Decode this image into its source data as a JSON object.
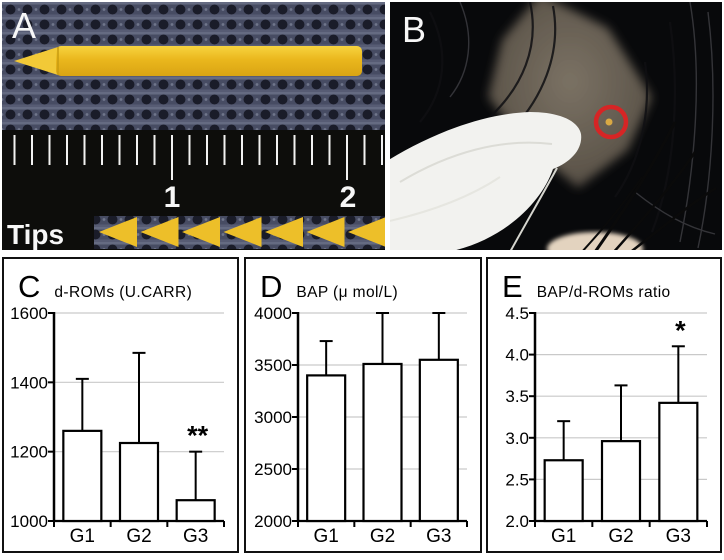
{
  "colors": {
    "crayon_yellow": "#eab71d",
    "crayon_tip_yellow": "#f2c937",
    "tip_triangle_yellow": "#edbf29",
    "circle_red": "#d62525",
    "marker_dot_yellow": "#d9a944",
    "mesh_base": "#474c63",
    "mesh_hole": "#1a1c29",
    "ruler_black": "#0d0d0b",
    "bar_fill": "#ffffff",
    "bar_border": "#000000",
    "grid_gray": "#c9c9c9",
    "photo_label_white": "#f7f7f7"
  },
  "panels": {
    "a": {
      "label": "A",
      "tips_label": "Tips",
      "ruler_numbers": [
        "1",
        "2"
      ],
      "tip_count": 7
    },
    "b": {
      "label": "B"
    }
  },
  "chart_data": [
    {
      "id": "c",
      "panel_label": "C",
      "type": "bar",
      "title": "d-ROMs (U.CARR)",
      "categories": [
        "G1",
        "G2",
        "G3"
      ],
      "values": [
        1260,
        1225,
        1060
      ],
      "error_top": [
        1410,
        1485,
        1200
      ],
      "significance": [
        "",
        "",
        "**"
      ],
      "ylim": [
        1000,
        1600
      ],
      "ytick_values": [
        1600,
        1400,
        1200,
        1000
      ],
      "ytick_labels": [
        "1600",
        "1400",
        "1200",
        "1000"
      ],
      "grid": true,
      "legend": false,
      "axis_x": 50
    },
    {
      "id": "d",
      "panel_label": "D",
      "type": "bar",
      "title": "BAP (μ mol/L)",
      "categories": [
        "G1",
        "G2",
        "G3"
      ],
      "values": [
        3400,
        3510,
        3550
      ],
      "error_top": [
        3730,
        4000,
        4000
      ],
      "significance": [
        "",
        "",
        ""
      ],
      "ylim": [
        2000,
        4000
      ],
      "ytick_values": [
        4000,
        3500,
        3000,
        2500,
        2000
      ],
      "ytick_labels": [
        "4000",
        "3500",
        "3000",
        "2500",
        "2000"
      ],
      "grid": true,
      "legend": false,
      "axis_x": 52
    },
    {
      "id": "e",
      "panel_label": "E",
      "type": "bar",
      "title": "BAP/d-ROMs ratio",
      "categories": [
        "G1",
        "G2",
        "G3"
      ],
      "values": [
        2.73,
        2.96,
        3.42
      ],
      "error_top": [
        3.2,
        3.63,
        4.1
      ],
      "significance": [
        "",
        "",
        "*"
      ],
      "ylim": [
        2.0,
        4.5
      ],
      "ytick_values": [
        4.5,
        4.0,
        3.5,
        3.0,
        2.5,
        2.0
      ],
      "ytick_labels": [
        "4.5",
        "4.0",
        "3.5",
        "3.0",
        "2.5",
        "2.0"
      ],
      "grid": true,
      "legend": false,
      "axis_x": 47
    }
  ]
}
